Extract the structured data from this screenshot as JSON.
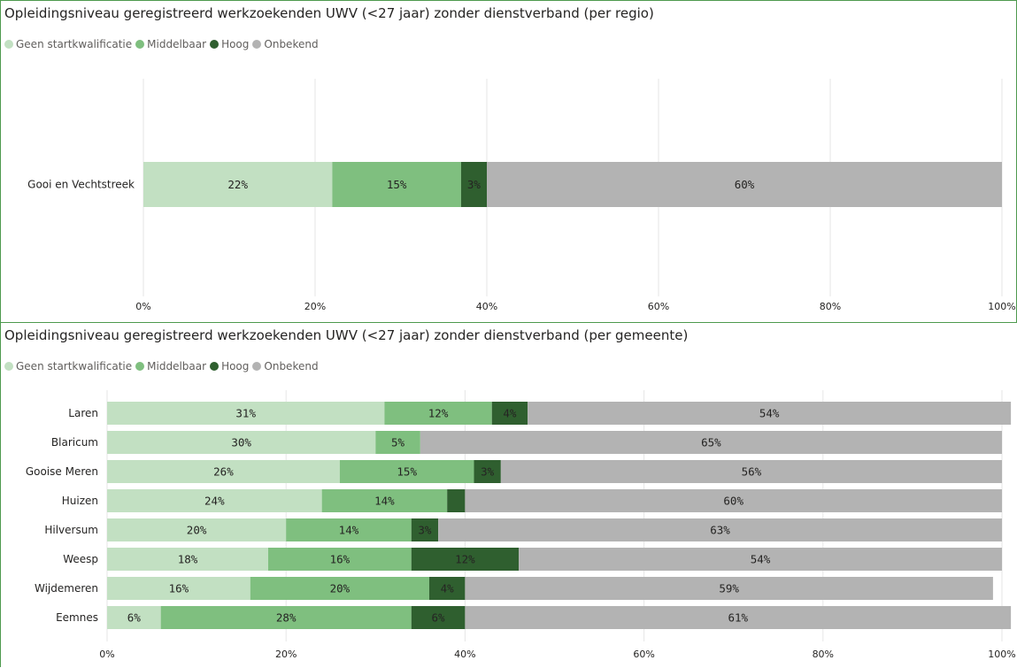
{
  "series_meta": [
    {
      "name": "Geen startkwalificatie",
      "color": "#c2e0c2"
    },
    {
      "name": "Middelbaar",
      "color": "#7fbf7f"
    },
    {
      "name": "Hoog",
      "color": "#2f5f2f"
    },
    {
      "name": "Onbekend",
      "color": "#b3b3b3"
    }
  ],
  "chart_data": [
    {
      "type": "bar",
      "orientation": "horizontal",
      "stacked": true,
      "title": "Opleidingsniveau geregistreerd werkzoekenden UWV (<27 jaar) zonder dienstverband (per regio)",
      "legend_position": "top-left",
      "grid": true,
      "categories": [
        "Gooi en Vechtstreek"
      ],
      "series": [
        {
          "name": "Geen startkwalificatie",
          "values": [
            22
          ]
        },
        {
          "name": "Middelbaar",
          "values": [
            15
          ]
        },
        {
          "name": "Hoog",
          "values": [
            3
          ]
        },
        {
          "name": "Onbekend",
          "values": [
            60
          ]
        }
      ],
      "labels": [
        [
          "22%",
          "15%",
          "3%",
          "60%"
        ]
      ],
      "xlim": [
        0,
        100
      ],
      "xticks": [
        "0%",
        "20%",
        "40%",
        "60%",
        "80%",
        "100%"
      ]
    },
    {
      "type": "bar",
      "orientation": "horizontal",
      "stacked": true,
      "title": "Opleidingsniveau geregistreerd werkzoekenden UWV (<27 jaar) zonder dienstverband (per gemeente)",
      "legend_position": "top-left",
      "grid": true,
      "categories": [
        "Laren",
        "Blaricum",
        "Gooise Meren",
        "Huizen",
        "Hilversum",
        "Weesp",
        "Wijdemeren",
        "Eemnes"
      ],
      "series": [
        {
          "name": "Geen startkwalificatie",
          "values": [
            31,
            30,
            26,
            24,
            20,
            18,
            16,
            6
          ]
        },
        {
          "name": "Middelbaar",
          "values": [
            12,
            5,
            15,
            14,
            14,
            16,
            20,
            28
          ]
        },
        {
          "name": "Hoog",
          "values": [
            4,
            0,
            3,
            2,
            3,
            12,
            4,
            6
          ]
        },
        {
          "name": "Onbekend",
          "values": [
            54,
            65,
            56,
            60,
            63,
            54,
            59,
            61
          ]
        }
      ],
      "labels": [
        [
          "31%",
          "12%",
          "4%",
          "54%"
        ],
        [
          "30%",
          "5%",
          "",
          "65%"
        ],
        [
          "26%",
          "15%",
          "3%",
          "56%"
        ],
        [
          "24%",
          "14%",
          "",
          "60%"
        ],
        [
          "20%",
          "14%",
          "3%",
          "63%"
        ],
        [
          "18%",
          "16%",
          "12%",
          "54%"
        ],
        [
          "16%",
          "20%",
          "4%",
          "59%"
        ],
        [
          "6%",
          "28%",
          "6%",
          "61%"
        ]
      ],
      "xlim": [
        0,
        100
      ],
      "xticks": [
        "0%",
        "20%",
        "40%",
        "60%",
        "80%",
        "100%"
      ]
    }
  ]
}
